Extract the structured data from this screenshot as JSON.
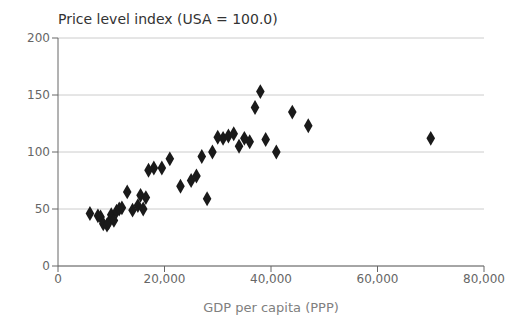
{
  "chart_data": {
    "type": "scatter",
    "title": "Price level index (USA = 100.0)",
    "xlabel": "GDP per capita (PPP)",
    "x": [
      6000,
      7500,
      8000,
      8500,
      9200,
      9500,
      10000,
      10500,
      11000,
      11500,
      12000,
      13000,
      14000,
      15000,
      15500,
      16000,
      16500,
      17000,
      18000,
      19500,
      21000,
      23000,
      25000,
      26000,
      27000,
      28000,
      29000,
      30000,
      31000,
      32000,
      33000,
      34000,
      35000,
      36000,
      37000,
      38000,
      39000,
      41000,
      44000,
      47000,
      70000
    ],
    "values": [
      46,
      44,
      43,
      37,
      36,
      38,
      45,
      40,
      48,
      50,
      51,
      65,
      49,
      53,
      62,
      50,
      60,
      84,
      86,
      86,
      94,
      70,
      75,
      79,
      96,
      59,
      100,
      113,
      112,
      114,
      116,
      105,
      112,
      109,
      139,
      153,
      111,
      100,
      135,
      123,
      112
    ],
    "color": "#1a1a1a",
    "marker": "diamond",
    "xlim": [
      0,
      80000
    ],
    "ylim": [
      0,
      200
    ],
    "xticks": [
      0,
      {
        "value": 20000,
        "label": "20,000"
      },
      {
        "value": 40000,
        "label": "40,000"
      },
      {
        "value": 60000,
        "label": "60,000"
      },
      {
        "value": 80000,
        "label": "80,000"
      }
    ],
    "yticks": [
      0,
      50,
      100,
      150,
      200
    ],
    "grid": true
  }
}
